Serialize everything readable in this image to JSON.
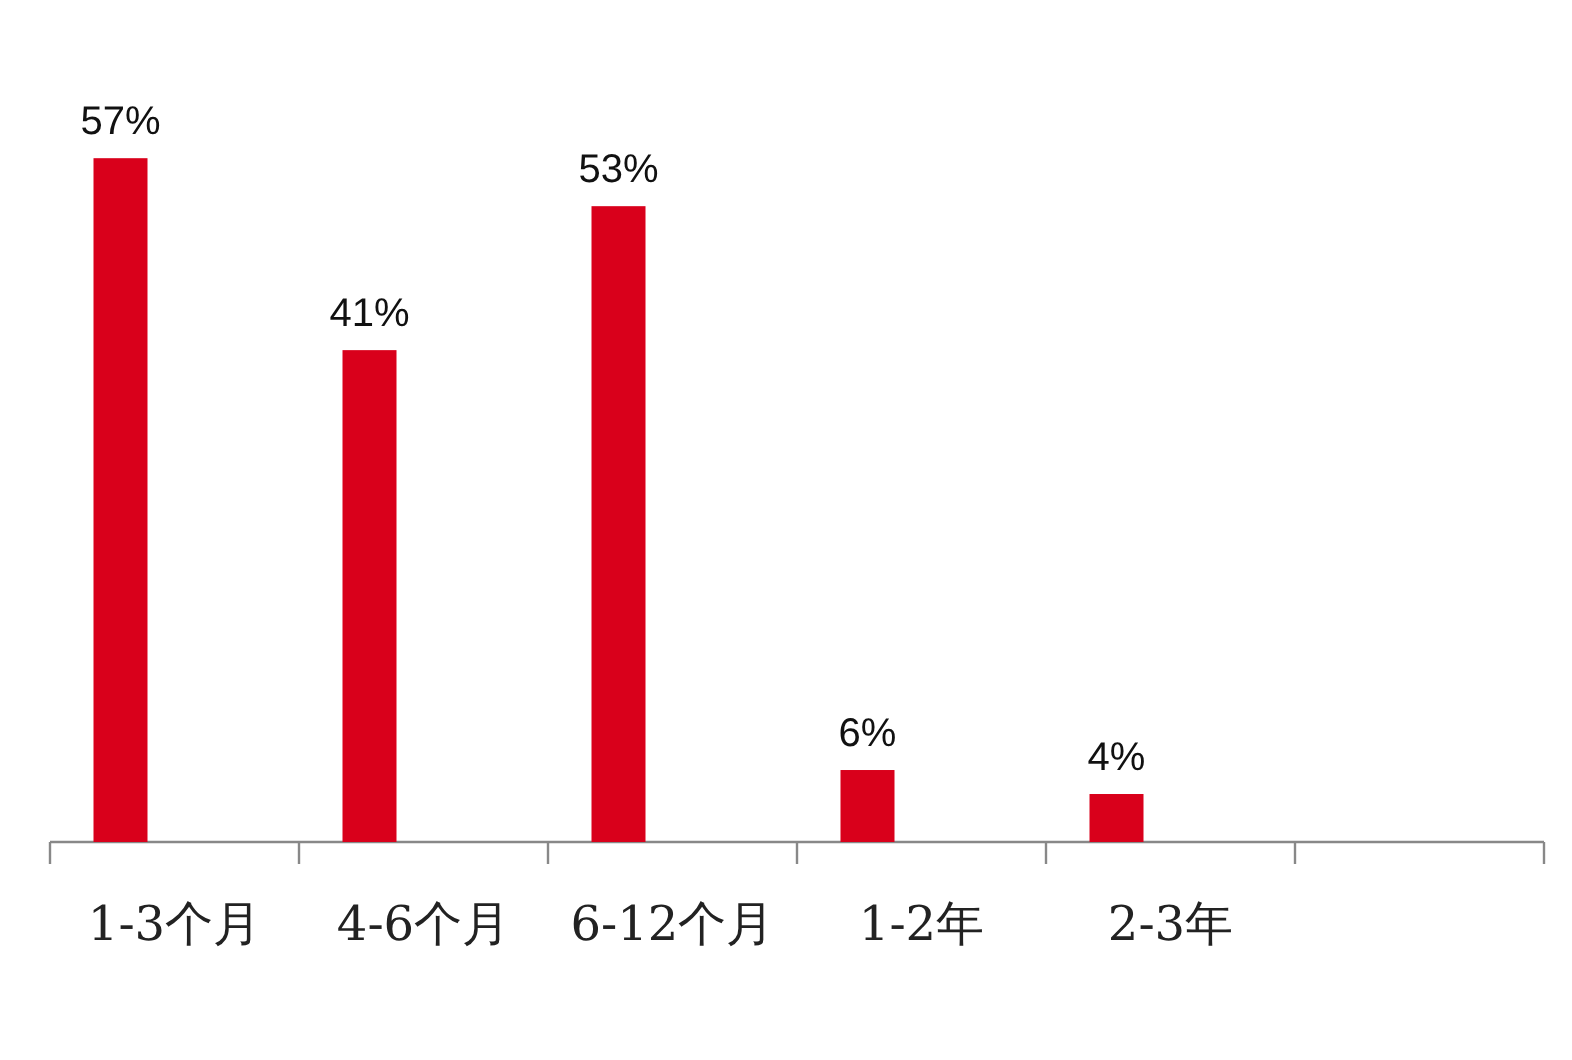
{
  "chart_data": {
    "type": "bar",
    "categories": [
      "1-3个月",
      "4-6个月",
      "6-12个月",
      "1-2年",
      "2-3年",
      null
    ],
    "values": [
      57,
      41,
      53,
      6,
      4,
      null
    ],
    "color": "#d9001b",
    "value_labels": [
      "57%",
      "41%",
      "53%",
      "6%",
      "4%",
      null
    ]
  }
}
